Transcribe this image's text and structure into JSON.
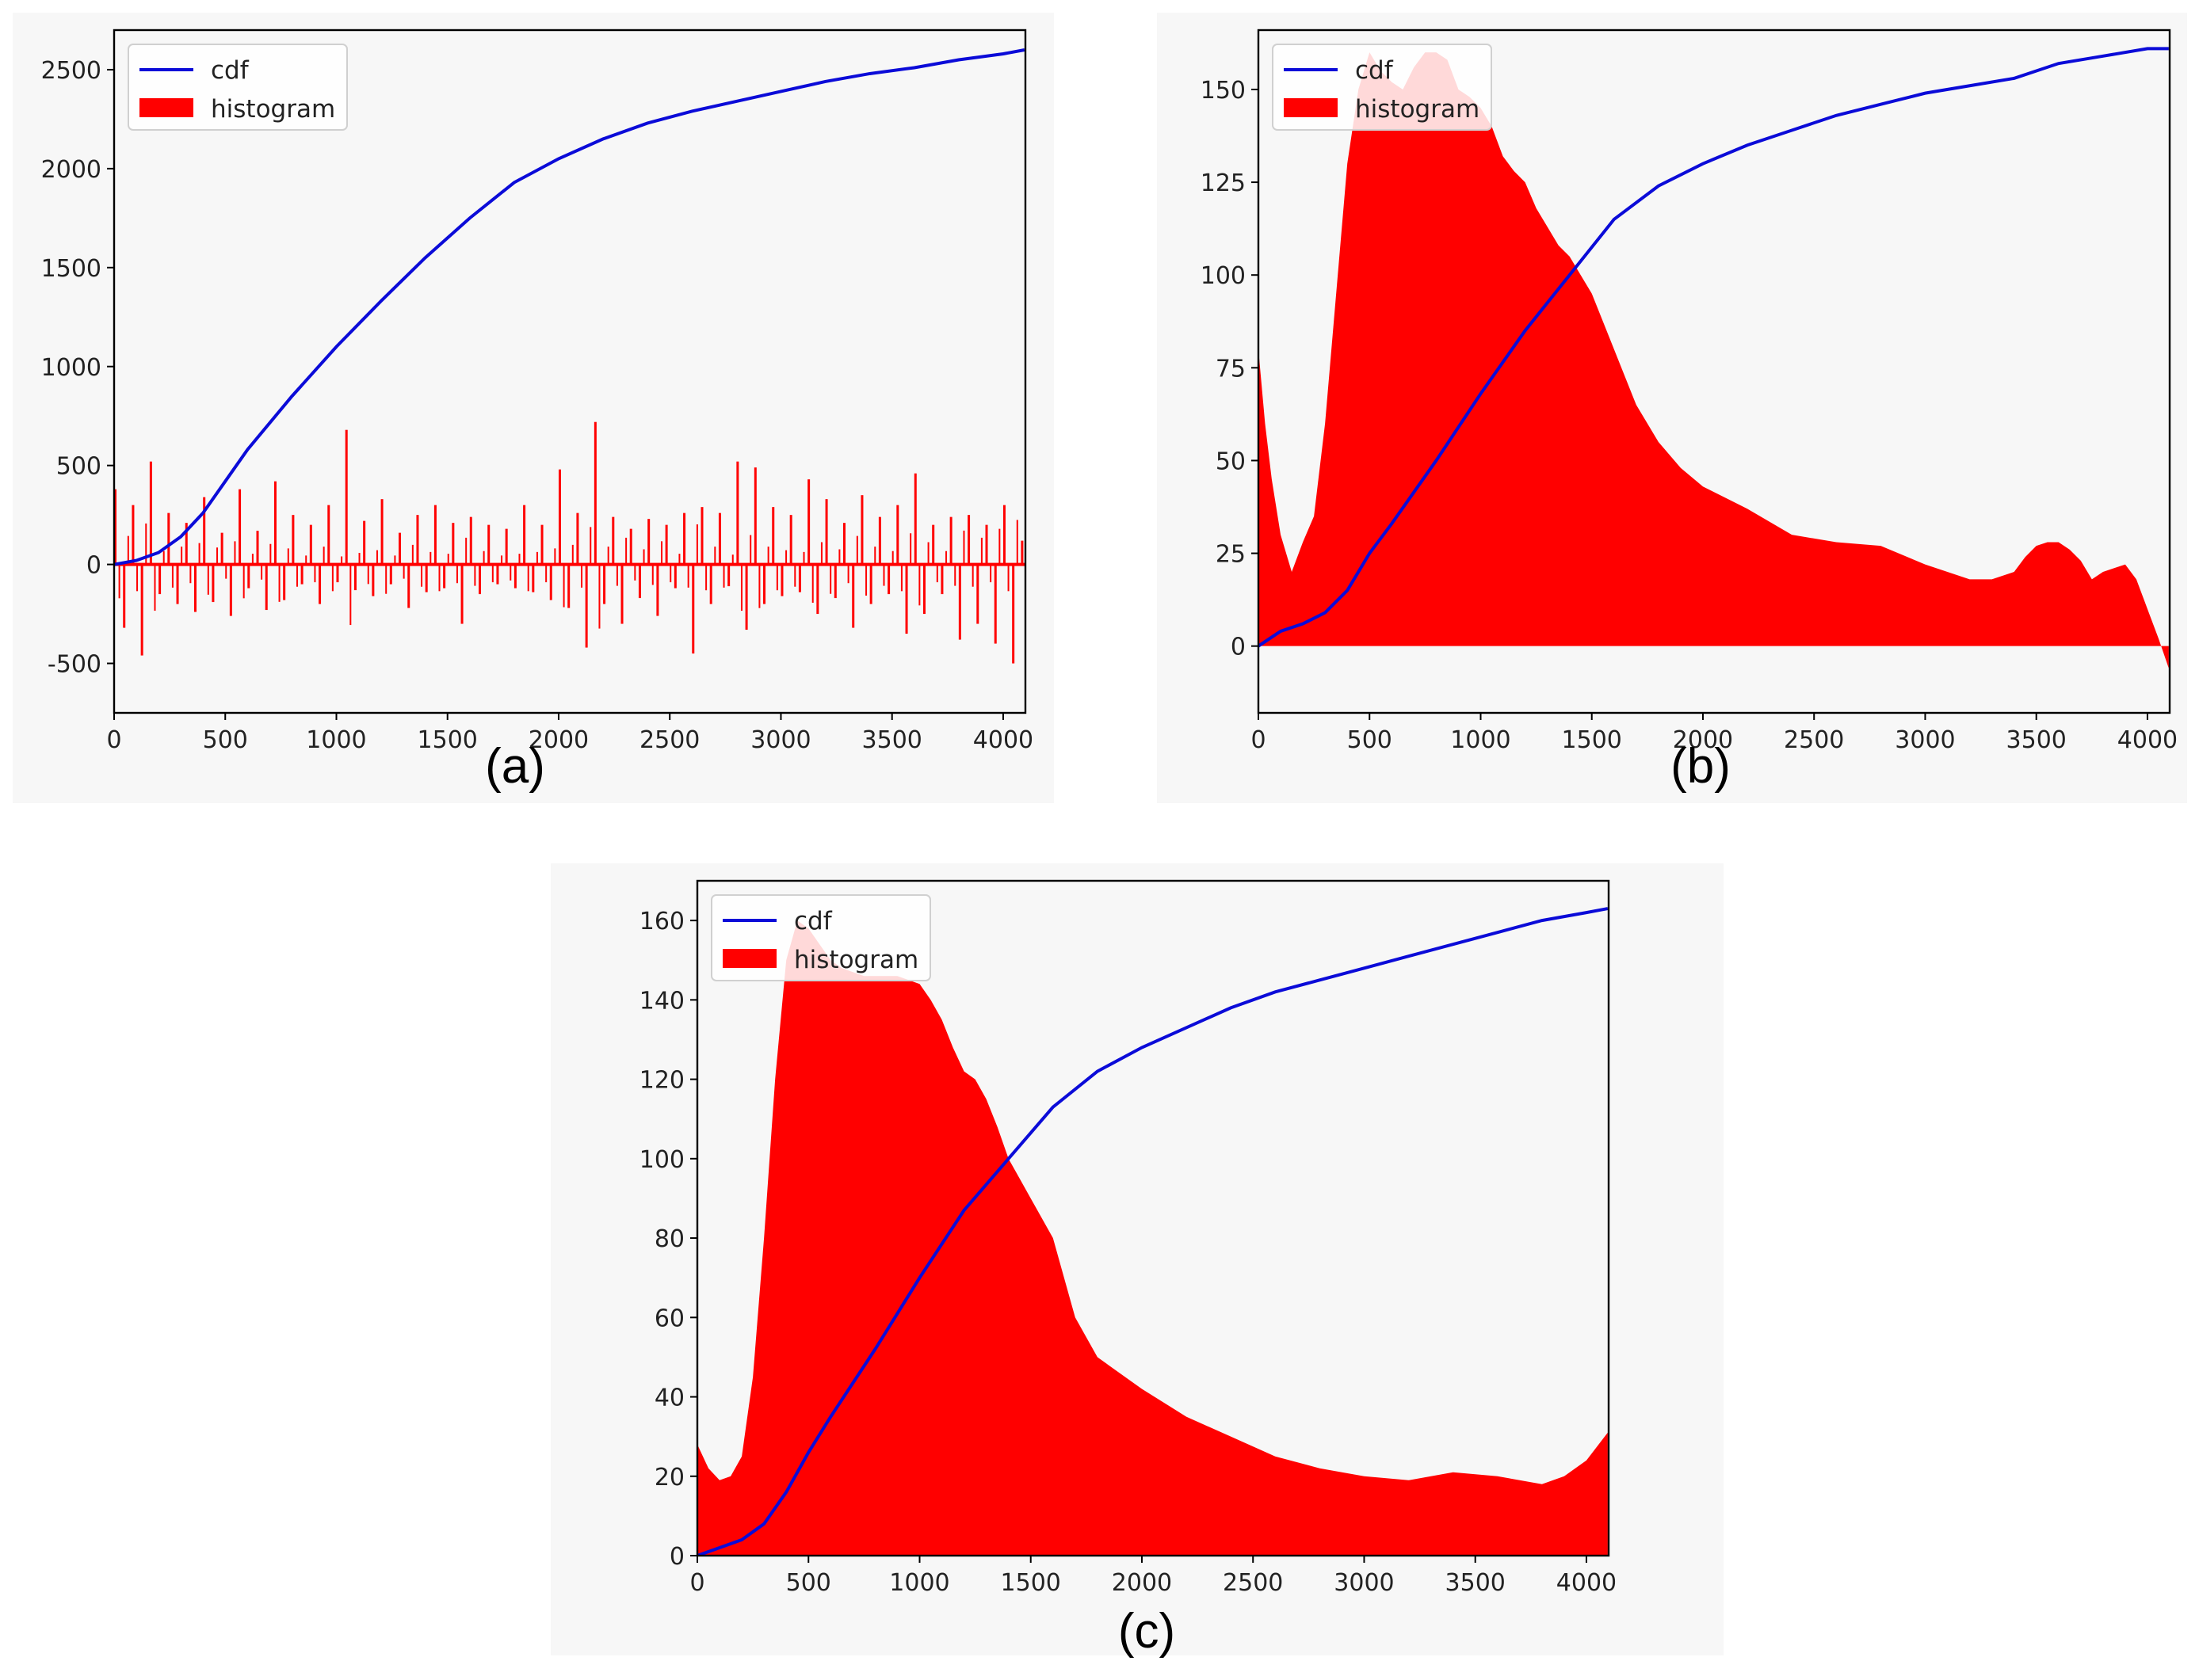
{
  "colors": {
    "cdf": "#0b0bd8",
    "histogram": "#ff0000",
    "panel_bg": "#f7f7f7"
  },
  "chart_data": [
    {
      "id": "a",
      "caption": "(a)",
      "type": "bar",
      "legend": {
        "position": "upper-left",
        "entries": [
          "cdf",
          "histogram"
        ]
      },
      "xlim": [
        0,
        4100
      ],
      "ylim": [
        -750,
        2700
      ],
      "xticks": [
        "0",
        "500",
        "1000",
        "1500",
        "2000",
        "2500",
        "3000",
        "3500",
        "4000"
      ],
      "yticks": [
        "-500",
        "0",
        "500",
        "1000",
        "1500",
        "2000",
        "2500"
      ],
      "series": [
        {
          "name": "cdf",
          "kind": "line",
          "x": [
            0,
            100,
            200,
            300,
            400,
            500,
            600,
            800,
            1000,
            1200,
            1400,
            1600,
            1800,
            2000,
            2200,
            2400,
            2600,
            2800,
            3000,
            3200,
            3400,
            3600,
            3800,
            4000,
            4096
          ],
          "y": [
            0,
            20,
            60,
            140,
            260,
            420,
            580,
            850,
            1100,
            1330,
            1550,
            1750,
            1930,
            2050,
            2150,
            2230,
            2290,
            2340,
            2390,
            2440,
            2480,
            2510,
            2550,
            2580,
            2600
          ]
        },
        {
          "name": "histogram",
          "kind": "bar",
          "description": "noisy bars oscillating around 0, range about -500 to 700",
          "x": [
            0,
            40,
            80,
            120,
            160,
            200,
            240,
            280,
            320,
            360,
            400,
            440,
            480,
            520,
            560,
            600,
            640,
            680,
            720,
            760,
            800,
            840,
            880,
            920,
            960,
            1000,
            1040,
            1080,
            1120,
            1160,
            1200,
            1240,
            1280,
            1320,
            1360,
            1400,
            1440,
            1480,
            1520,
            1560,
            1600,
            1640,
            1680,
            1720,
            1760,
            1800,
            1840,
            1880,
            1920,
            1960,
            2000,
            2040,
            2080,
            2120,
            2160,
            2200,
            2240,
            2280,
            2320,
            2360,
            2400,
            2440,
            2480,
            2520,
            2560,
            2600,
            2640,
            2680,
            2720,
            2760,
            2800,
            2840,
            2880,
            2920,
            2960,
            3000,
            3040,
            3080,
            3120,
            3160,
            3200,
            3240,
            3280,
            3320,
            3360,
            3400,
            3440,
            3480,
            3520,
            3560,
            3600,
            3640,
            3680,
            3720,
            3760,
            3800,
            3840,
            3880,
            3920,
            3960,
            4000,
            4040,
            4080
          ],
          "y": [
            380,
            -320,
            300,
            -460,
            520,
            -150,
            260,
            -200,
            210,
            -240,
            340,
            -190,
            160,
            -260,
            380,
            -120,
            170,
            -230,
            420,
            -180,
            250,
            -100,
            200,
            -200,
            300,
            -90,
            680,
            -130,
            220,
            -160,
            330,
            -100,
            160,
            -220,
            250,
            -140,
            300,
            -120,
            210,
            -300,
            240,
            -150,
            200,
            -100,
            180,
            -120,
            300,
            -140,
            200,
            -180,
            480,
            -220,
            260,
            -420,
            720,
            -200,
            240,
            -300,
            180,
            -170,
            230,
            -260,
            200,
            -120,
            260,
            -450,
            290,
            -200,
            260,
            -110,
            520,
            -330,
            490,
            -200,
            290,
            -160,
            250,
            -140,
            430,
            -250,
            330,
            -170,
            210,
            -320,
            350,
            -200,
            240,
            -150,
            300,
            -350,
            460,
            -250,
            200,
            -150,
            240,
            -380,
            250,
            -300,
            200,
            -400,
            300,
            -500,
            120
          ]
        }
      ]
    },
    {
      "id": "b",
      "caption": "(b)",
      "type": "area",
      "legend": {
        "position": "upper-left",
        "entries": [
          "cdf",
          "histogram"
        ]
      },
      "xlim": [
        0,
        4100
      ],
      "ylim": [
        -18,
        166
      ],
      "xticks": [
        "0",
        "500",
        "1000",
        "1500",
        "2000",
        "2500",
        "3000",
        "3500",
        "4000"
      ],
      "yticks": [
        "0",
        "25",
        "50",
        "75",
        "100",
        "125",
        "150"
      ],
      "series": [
        {
          "name": "cdf",
          "kind": "line",
          "x": [
            0,
            100,
            200,
            300,
            400,
            500,
            600,
            800,
            1000,
            1200,
            1400,
            1600,
            1800,
            2000,
            2200,
            2400,
            2600,
            2800,
            3000,
            3200,
            3400,
            3600,
            3800,
            4000,
            4096
          ],
          "y": [
            0,
            4,
            6,
            9,
            15,
            25,
            33,
            50,
            68,
            85,
            100,
            115,
            124,
            130,
            135,
            139,
            143,
            146,
            149,
            151,
            153,
            157,
            159,
            161,
            161
          ]
        },
        {
          "name": "histogram",
          "kind": "area",
          "x": [
            0,
            30,
            60,
            100,
            150,
            200,
            250,
            300,
            350,
            400,
            450,
            500,
            550,
            600,
            650,
            700,
            750,
            800,
            850,
            900,
            950,
            1000,
            1050,
            1100,
            1150,
            1200,
            1250,
            1300,
            1350,
            1400,
            1450,
            1500,
            1600,
            1700,
            1800,
            1900,
            2000,
            2200,
            2400,
            2600,
            2800,
            3000,
            3200,
            3300,
            3400,
            3450,
            3500,
            3550,
            3600,
            3650,
            3700,
            3750,
            3800,
            3850,
            3900,
            3950,
            4000,
            4050,
            4096
          ],
          "y": [
            80,
            60,
            45,
            30,
            20,
            28,
            35,
            60,
            95,
            130,
            150,
            160,
            155,
            152,
            150,
            156,
            160,
            160,
            158,
            150,
            148,
            145,
            140,
            132,
            128,
            125,
            118,
            113,
            108,
            105,
            100,
            95,
            80,
            65,
            55,
            48,
            43,
            37,
            30,
            28,
            27,
            22,
            18,
            18,
            20,
            24,
            27,
            28,
            28,
            26,
            23,
            18,
            20,
            21,
            22,
            18,
            10,
            2,
            -6
          ]
        }
      ]
    },
    {
      "id": "c",
      "caption": "(c)",
      "type": "area",
      "legend": {
        "position": "upper-left",
        "entries": [
          "cdf",
          "histogram"
        ]
      },
      "xlim": [
        0,
        4100
      ],
      "ylim": [
        0,
        170
      ],
      "xticks": [
        "0",
        "500",
        "1000",
        "1500",
        "2000",
        "2500",
        "3000",
        "3500",
        "4000"
      ],
      "yticks": [
        "0",
        "20",
        "40",
        "60",
        "80",
        "100",
        "120",
        "140",
        "160"
      ],
      "series": [
        {
          "name": "cdf",
          "kind": "line",
          "x": [
            0,
            100,
            200,
            300,
            400,
            500,
            600,
            800,
            1000,
            1200,
            1400,
            1600,
            1800,
            2000,
            2200,
            2400,
            2600,
            2800,
            3000,
            3200,
            3400,
            3600,
            3800,
            4000,
            4096
          ],
          "y": [
            0,
            2,
            4,
            8,
            16,
            26,
            35,
            52,
            70,
            87,
            100,
            113,
            122,
            128,
            133,
            138,
            142,
            145,
            148,
            151,
            154,
            157,
            160,
            162,
            163
          ]
        },
        {
          "name": "histogram",
          "kind": "area",
          "x": [
            0,
            50,
            100,
            150,
            200,
            250,
            300,
            350,
            400,
            450,
            500,
            550,
            600,
            650,
            700,
            750,
            800,
            850,
            900,
            950,
            1000,
            1050,
            1100,
            1150,
            1200,
            1250,
            1300,
            1350,
            1400,
            1450,
            1500,
            1600,
            1700,
            1800,
            1900,
            2000,
            2200,
            2400,
            2600,
            2800,
            3000,
            3200,
            3400,
            3600,
            3800,
            3900,
            4000,
            4096
          ],
          "y": [
            28,
            22,
            19,
            20,
            25,
            45,
            80,
            120,
            150,
            160,
            158,
            154,
            150,
            148,
            147,
            146,
            146,
            146,
            146,
            145,
            144,
            140,
            135,
            128,
            122,
            120,
            115,
            108,
            100,
            95,
            90,
            80,
            60,
            50,
            46,
            42,
            35,
            30,
            25,
            22,
            20,
            19,
            21,
            20,
            18,
            20,
            24,
            31
          ]
        }
      ]
    }
  ]
}
